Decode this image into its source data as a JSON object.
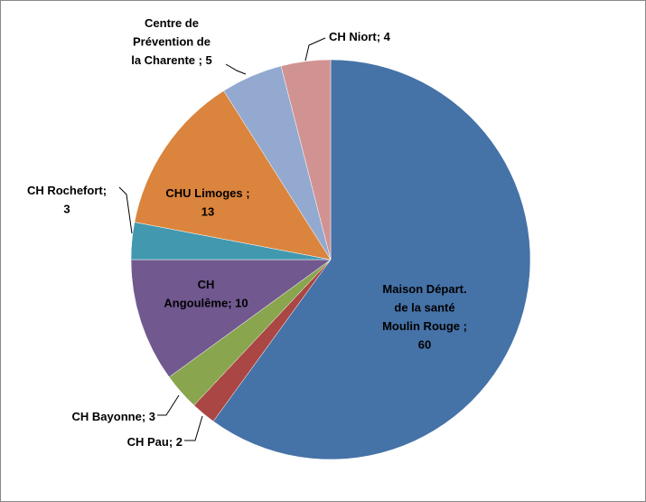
{
  "chart_data": {
    "type": "pie",
    "values": [
      60,
      2,
      3,
      10,
      3,
      13,
      5,
      4
    ],
    "value_labels": [
      "Maison Départ.\nde la santé\nMoulin Rouge ;\n60",
      "CH Pau; 2",
      "CH Bayonne; 3",
      "CH\nAngoulême; 10",
      "CH Rochefort;\n3",
      "CHU Limoges ;\n13",
      "Centre de\nPrévention de\nla Charente ; 5",
      "CH Niort; 4"
    ],
    "colors": [
      "#4572A7",
      "#AA4643",
      "#89A54E",
      "#71588F",
      "#4198AF",
      "#DB843D",
      "#93A9CF",
      "#D19392"
    ],
    "start_angle": 0,
    "direction": "clockwise"
  }
}
